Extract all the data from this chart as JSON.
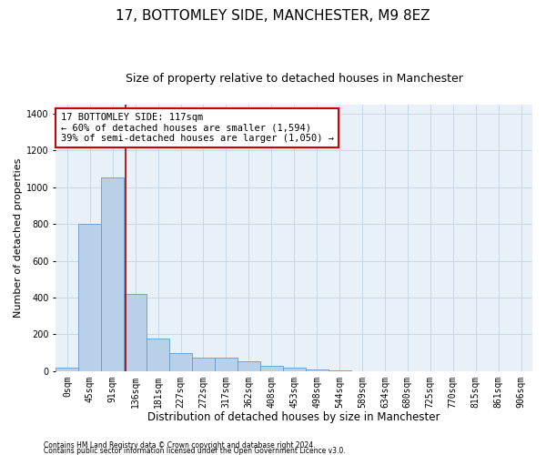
{
  "title1": "17, BOTTOMLEY SIDE, MANCHESTER, M9 8EZ",
  "title2": "Size of property relative to detached houses in Manchester",
  "xlabel": "Distribution of detached houses by size in Manchester",
  "ylabel": "Number of detached properties",
  "bin_labels": [
    "0sqm",
    "45sqm",
    "91sqm",
    "136sqm",
    "181sqm",
    "227sqm",
    "272sqm",
    "317sqm",
    "362sqm",
    "408sqm",
    "453sqm",
    "498sqm",
    "544sqm",
    "589sqm",
    "634sqm",
    "680sqm",
    "725sqm",
    "770sqm",
    "815sqm",
    "861sqm",
    "906sqm"
  ],
  "bar_values": [
    20,
    800,
    1055,
    420,
    175,
    100,
    75,
    75,
    55,
    30,
    20,
    10,
    5,
    0,
    0,
    0,
    0,
    0,
    0,
    0,
    0
  ],
  "bar_color": "#b8d0e8",
  "bar_edgecolor": "#6699cc",
  "grid_color": "#c8d8e8",
  "bg_color": "#e8f0f8",
  "vline_x": 2.58,
  "vline_color": "#990000",
  "annotation_line1": "17 BOTTOMLEY SIDE: 117sqm",
  "annotation_line2": "← 60% of detached houses are smaller (1,594)",
  "annotation_line3": "39% of semi-detached houses are larger (1,050) →",
  "annotation_box_color": "#ffffff",
  "annotation_box_edgecolor": "#cc0000",
  "ylim": [
    0,
    1450
  ],
  "yticks": [
    0,
    200,
    400,
    600,
    800,
    1000,
    1200,
    1400
  ],
  "footer1": "Contains HM Land Registry data © Crown copyright and database right 2024.",
  "footer2": "Contains public sector information licensed under the Open Government Licence v3.0.",
  "title1_fontsize": 11,
  "title2_fontsize": 9,
  "tick_fontsize": 7,
  "xlabel_fontsize": 8.5,
  "ylabel_fontsize": 8,
  "annotation_fontsize": 7.5,
  "footer_fontsize": 5.5
}
